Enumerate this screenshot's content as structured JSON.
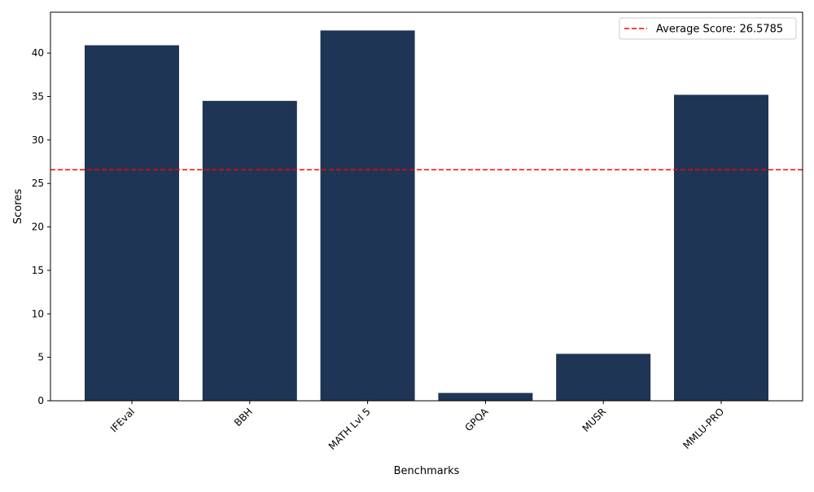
{
  "chart_data": {
    "type": "bar",
    "categories": [
      "IFEval",
      "BBH",
      "MATH Lvl 5",
      "GPQA",
      "MUSR",
      "MMLU-PRO"
    ],
    "values": [
      40.9,
      34.5,
      42.6,
      0.9,
      5.4,
      35.2
    ],
    "xlabel": "Benchmarks",
    "ylabel": "Scores",
    "ylim": [
      0,
      44.7
    ],
    "yticks": [
      0,
      5,
      10,
      15,
      20,
      25,
      30,
      35,
      40
    ],
    "grid": false,
    "bar_color": "#1f3556",
    "reference_line": {
      "label": "Average Score: 26.5785",
      "value": 26.5785,
      "color": "#ff0000",
      "style": "dashed"
    },
    "legend_position": "top-right",
    "xtick_rotation": "45 degrees"
  }
}
